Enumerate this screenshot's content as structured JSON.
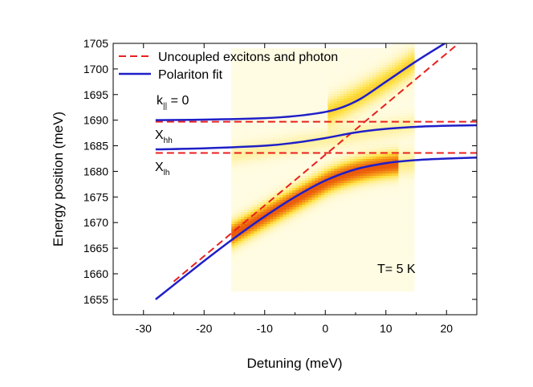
{
  "chart_data": {
    "type": "line",
    "xlabel": "Detuning (meV)",
    "ylabel": "Energy position (meV)",
    "xlim": [
      -35,
      25
    ],
    "ylim": [
      1652,
      1705
    ],
    "x_ticks": [
      -30,
      -20,
      -10,
      0,
      10,
      20
    ],
    "y_ticks": [
      1655,
      1660,
      1665,
      1670,
      1675,
      1680,
      1685,
      1690,
      1695,
      1700,
      1705
    ],
    "legend_position": "top-left",
    "colors": {
      "uncoupled": "#e8201e",
      "polariton": "#1f1fc8",
      "heatmap_low": "#fff6b0",
      "heatmap_high": "#f07010"
    },
    "series": [
      {
        "name": "Uncoupled excitons and photon",
        "style": "dashed",
        "color": "#e8201e",
        "lines": [
          {
            "x": [
              -25,
              22
            ],
            "y": [
              1658.5,
              1705
            ]
          },
          {
            "x": [
              -28,
              25
            ],
            "y": [
              1689.7,
              1689.7
            ]
          },
          {
            "x": [
              -28,
              25
            ],
            "y": [
              1683.6,
              1683.6
            ]
          }
        ]
      },
      {
        "name": "Polariton fit",
        "style": "solid",
        "color": "#1f1fc8",
        "lines": [
          {
            "x": [
              -28,
              -20,
              -10,
              -5,
              0,
              3,
              6,
              10,
              15,
              20
            ],
            "y": [
              1690.0,
              1690.1,
              1690.4,
              1690.8,
              1691.6,
              1692.6,
              1694.3,
              1697.5,
              1701.5,
              1705.2
            ]
          },
          {
            "x": [
              -28,
              -20,
              -10,
              -5,
              0,
              5,
              10,
              15,
              20,
              25
            ],
            "y": [
              1684.3,
              1684.5,
              1685.0,
              1685.6,
              1686.5,
              1687.6,
              1688.3,
              1688.7,
              1688.9,
              1689.0
            ]
          },
          {
            "x": [
              -28,
              -20,
              -15,
              -10,
              -5,
              0,
              5,
              10,
              15,
              20,
              25
            ],
            "y": [
              1655.0,
              1662.5,
              1667.0,
              1671.2,
              1675.0,
              1678.2,
              1680.4,
              1681.6,
              1682.2,
              1682.5,
              1682.7
            ]
          }
        ]
      }
    ],
    "heatmap": {
      "x_range": [
        -15.5,
        14.5
      ],
      "y_range": [
        1657,
        1705
      ],
      "bright_regions": [
        {
          "x": [
            -15,
            10
          ],
          "upper_branch": true
        },
        {
          "x": [
            -15,
            12
          ],
          "lower_branch": true
        }
      ]
    },
    "annotations": {
      "k_label": "k",
      "k_sub": "||",
      "k_rest": " = 0",
      "xhh_main": "X",
      "xhh_sub": "hh",
      "xlh_main": "X",
      "xlh_sub": "lh",
      "temperature": "T= 5 K"
    }
  }
}
